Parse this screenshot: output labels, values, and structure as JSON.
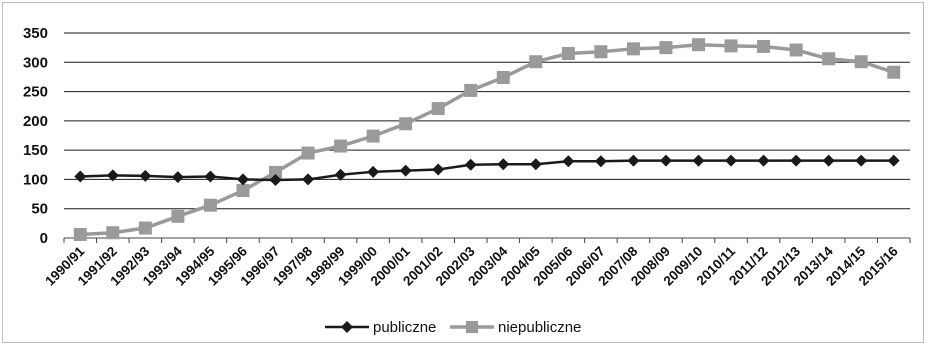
{
  "chart_data": {
    "type": "line",
    "x": [
      "1990/91",
      "1991/92",
      "1992/93",
      "1993/94",
      "1994/95",
      "1995/96",
      "1996/97",
      "1997/98",
      "1998/99",
      "1999/00",
      "2000/01",
      "2001/02",
      "2002/03",
      "2003/04",
      "2004/05",
      "2005/06",
      "2006/07",
      "2007/08",
      "2008/09",
      "2009/10",
      "2010/11",
      "2011/12",
      "2012/13",
      "2013/14",
      "2014/15",
      "2015/16"
    ],
    "series": [
      {
        "name": "publiczne",
        "color": "#1a1a1a",
        "marker": "diamond",
        "values": [
          105,
          107,
          106,
          104,
          105,
          100,
          99,
          100,
          108,
          113,
          115,
          117,
          125,
          126,
          126,
          131,
          131,
          132,
          132,
          132,
          132,
          132,
          132,
          132,
          132,
          132
        ]
      },
      {
        "name": "niepubliczne",
        "color": "#9a9a9a",
        "marker": "square",
        "values": [
          6,
          9,
          17,
          37,
          56,
          81,
          112,
          145,
          157,
          174,
          195,
          221,
          252,
          274,
          301,
          315,
          318,
          323,
          325,
          330,
          328,
          327,
          321,
          306,
          301,
          283
        ]
      }
    ],
    "yticks": [
      "0",
      "50",
      "100",
      "150",
      "200",
      "250",
      "300",
      "350"
    ],
    "ylim": [
      0,
      350
    ],
    "grid": true,
    "legend": "bottom",
    "title": "",
    "xlabel": "",
    "ylabel": ""
  }
}
